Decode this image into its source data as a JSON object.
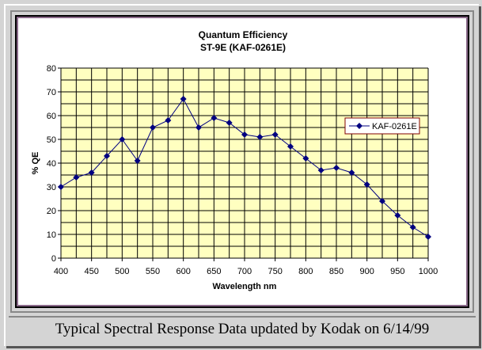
{
  "chart_data": {
    "type": "line",
    "title": "Quantum Efficiency",
    "subtitle": "ST-9E (KAF-0261E)",
    "xlabel": "Wavelength nm",
    "ylabel": "% QE",
    "xlim": [
      400,
      1000
    ],
    "ylim": [
      0,
      80
    ],
    "x_ticks": [
      400,
      450,
      500,
      550,
      600,
      650,
      700,
      750,
      800,
      850,
      900,
      950,
      1000
    ],
    "y_ticks": [
      0,
      10,
      20,
      30,
      40,
      50,
      60,
      70,
      80
    ],
    "grid": true,
    "legend_position": "right",
    "series": [
      {
        "name": "KAF-0261E",
        "color": "#000080",
        "x": [
          400,
          425,
          450,
          475,
          500,
          525,
          550,
          575,
          600,
          625,
          650,
          675,
          700,
          725,
          750,
          775,
          800,
          825,
          850,
          875,
          900,
          925,
          950,
          975,
          1000
        ],
        "values": [
          30,
          34,
          36,
          43,
          50,
          41,
          55,
          58,
          67,
          55,
          59,
          57,
          52,
          51,
          52,
          47,
          42,
          37,
          38,
          36,
          31,
          24,
          18,
          13,
          9
        ]
      }
    ]
  },
  "caption": "Typical Spectral Response Data updated by Kodak on 6/14/99",
  "colors": {
    "plot_bg": "#ffffc0",
    "grid": "#000000"
  }
}
